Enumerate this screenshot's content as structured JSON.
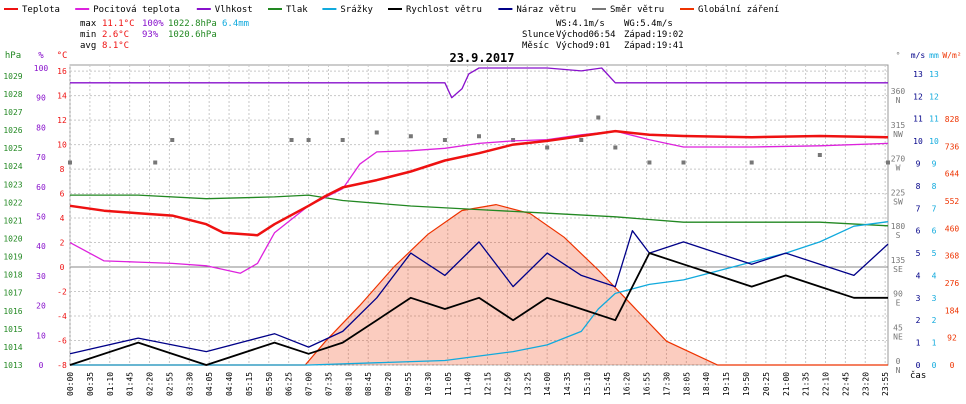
{
  "colors": {
    "temperature": "#ee1111",
    "apparent": "#dd22dd",
    "humidity": "#8811cc",
    "pressure": "#228822",
    "precip": "#11aadd",
    "wind_speed": "#000000",
    "gust": "#000088",
    "direction": "#777777",
    "radiation": "#ee3300",
    "grid": "#c8c8c8",
    "zero_line": "#888888"
  },
  "legend": [
    {
      "label": "Teplota",
      "color": "#ee1111"
    },
    {
      "label": "Pocitová teplota",
      "color": "#dd22dd"
    },
    {
      "label": "Vlhkost",
      "color": "#8811cc"
    },
    {
      "label": "Tlak",
      "color": "#228822"
    },
    {
      "label": "Srážky",
      "color": "#11aadd"
    },
    {
      "label": "Rychlost větru",
      "color": "#000000"
    },
    {
      "label": "Náraz větru",
      "color": "#000088"
    },
    {
      "label": "Směr větru",
      "color": "#777777"
    },
    {
      "label": "Globální záření",
      "color": "#ee3300"
    }
  ],
  "stats": {
    "max_label": "max",
    "max_t": "11.1°C",
    "max_h": "100%",
    "max_p": "1022.8hPa",
    "rain": "6.4mm",
    "min_label": "min",
    "min_t": "2.6°C",
    "min_h": "93%",
    "min_p": "1020.6hPa",
    "avg_label": "avg",
    "avg_t": "8.1°C",
    "ws": "WS:4.1m/s",
    "wg": "WG:5.4m/s",
    "sun_label": "Slunce",
    "sun_rise": "Východ06:54",
    "sun_set": "Západ:19:02",
    "moon_label": "Měsíc",
    "moon_rise": "Východ9:01",
    "moon_set": "Západ:19:41"
  },
  "chart_data": {
    "type": "line",
    "title": "23.9.2017",
    "x_unit": "čas",
    "axes": {
      "hPa": {
        "label": "hPa",
        "ticks": [
          1013,
          1014,
          1015,
          1016,
          1017,
          1018,
          1019,
          1020,
          1021,
          1022,
          1023,
          1024,
          1025,
          1026,
          1027,
          1028,
          1029
        ]
      },
      "pct": {
        "label": "%",
        "ticks": [
          0,
          10,
          20,
          30,
          40,
          50,
          60,
          70,
          80,
          90,
          100
        ]
      },
      "degC": {
        "label": "°C",
        "ticks": [
          -8,
          -6,
          -4,
          -2,
          0,
          2,
          4,
          6,
          8,
          10,
          12,
          14,
          16
        ]
      },
      "dir": {
        "label": "°",
        "ticks": [
          "0",
          "45",
          "90",
          "135",
          "180",
          "225",
          "270",
          "315",
          "360"
        ],
        "names": [
          "N",
          "NE",
          "E",
          "SE",
          "S",
          "SW",
          "W",
          "NW",
          "N"
        ]
      },
      "ms": {
        "label": "m/s",
        "ticks": [
          0,
          1,
          2,
          3,
          4,
          5,
          6,
          7,
          8,
          9,
          10,
          11,
          12,
          13
        ]
      },
      "mm": {
        "label": "mm",
        "ticks": [
          0,
          1,
          2,
          3,
          4,
          5,
          6,
          7,
          8,
          9,
          10,
          11,
          12,
          13
        ]
      },
      "wm2": {
        "label": "W/m²",
        "ticks": [
          0,
          92,
          184,
          276,
          368,
          460,
          552,
          644,
          736,
          828
        ]
      }
    },
    "x_ticks": [
      "00:00",
      "00:35",
      "01:10",
      "01:45",
      "02:20",
      "02:55",
      "03:30",
      "04:05",
      "04:40",
      "05:15",
      "05:50",
      "06:25",
      "07:00",
      "07:35",
      "08:10",
      "08:45",
      "09:20",
      "09:55",
      "10:30",
      "11:05",
      "11:40",
      "12:15",
      "12:50",
      "13:25",
      "14:00",
      "14:35",
      "15:10",
      "15:45",
      "16:20",
      "16:55",
      "17:30",
      "18:05",
      "18:40",
      "19:15",
      "19:50",
      "20:25",
      "21:00",
      "21:35",
      "22:10",
      "22:45",
      "23:20",
      "23:55"
    ],
    "series": [
      {
        "name": "Teplota",
        "unit": "°C",
        "points": [
          [
            0,
            5.0
          ],
          [
            1,
            4.6
          ],
          [
            2,
            4.4
          ],
          [
            3,
            4.2
          ],
          [
            4,
            3.5
          ],
          [
            4.5,
            2.8
          ],
          [
            5.5,
            2.6
          ],
          [
            6,
            3.5
          ],
          [
            7,
            5.0
          ],
          [
            7.5,
            5.8
          ],
          [
            8,
            6.5
          ],
          [
            9,
            7.1
          ],
          [
            10,
            7.8
          ],
          [
            11,
            8.7
          ],
          [
            12,
            9.3
          ],
          [
            13,
            10.0
          ],
          [
            14,
            10.3
          ],
          [
            14.5,
            10.5
          ],
          [
            15,
            10.7
          ],
          [
            16,
            11.1
          ],
          [
            17,
            10.8
          ],
          [
            18,
            10.7
          ],
          [
            20,
            10.6
          ],
          [
            22,
            10.7
          ],
          [
            24,
            10.6
          ]
        ]
      },
      {
        "name": "Pocitová teplota",
        "unit": "°C",
        "points": [
          [
            0,
            2.0
          ],
          [
            1,
            0.5
          ],
          [
            2,
            0.4
          ],
          [
            3,
            0.3
          ],
          [
            4,
            0.1
          ],
          [
            5,
            -0.5
          ],
          [
            5.5,
            0.3
          ],
          [
            6,
            2.8
          ],
          [
            7,
            5.0
          ],
          [
            8,
            6.4
          ],
          [
            8.5,
            8.4
          ],
          [
            9,
            9.4
          ],
          [
            10,
            9.5
          ],
          [
            11,
            9.7
          ],
          [
            12,
            10.1
          ],
          [
            13,
            10.3
          ],
          [
            14,
            10.4
          ],
          [
            15,
            10.8
          ],
          [
            16,
            11.1
          ],
          [
            17,
            10.4
          ],
          [
            18,
            9.8
          ],
          [
            20,
            9.8
          ],
          [
            22,
            9.9
          ],
          [
            24,
            10.1
          ]
        ]
      },
      {
        "name": "Vlhkost",
        "unit": "%",
        "points": [
          [
            0,
            95
          ],
          [
            11,
            95
          ],
          [
            11.2,
            90
          ],
          [
            11.5,
            93
          ],
          [
            11.7,
            98
          ],
          [
            12,
            100
          ],
          [
            14,
            100
          ],
          [
            15,
            99
          ],
          [
            15.6,
            100
          ],
          [
            16,
            95
          ],
          [
            17,
            95
          ],
          [
            18,
            95
          ],
          [
            20,
            95
          ],
          [
            24,
            95
          ]
        ]
      },
      {
        "name": "Tlak",
        "unit": "hPa",
        "points": [
          [
            0,
            1022.4
          ],
          [
            2,
            1022.4
          ],
          [
            4,
            1022.2
          ],
          [
            6,
            1022.3
          ],
          [
            7,
            1022.4
          ],
          [
            8,
            1022.1
          ],
          [
            10,
            1021.8
          ],
          [
            12,
            1021.6
          ],
          [
            14,
            1021.4
          ],
          [
            16,
            1021.2
          ],
          [
            18,
            1020.9
          ],
          [
            20,
            1020.9
          ],
          [
            22,
            1020.9
          ],
          [
            24,
            1020.7
          ]
        ]
      },
      {
        "name": "Srážky",
        "unit": "mm",
        "points": [
          [
            0,
            0
          ],
          [
            7,
            0
          ],
          [
            11,
            0.2
          ],
          [
            13,
            0.6
          ],
          [
            14,
            0.9
          ],
          [
            15,
            1.5
          ],
          [
            15.5,
            2.5
          ],
          [
            16,
            3.2
          ],
          [
            17,
            3.6
          ],
          [
            18,
            3.8
          ],
          [
            19,
            4.2
          ],
          [
            20,
            4.6
          ],
          [
            21,
            5.0
          ],
          [
            22,
            5.5
          ],
          [
            23,
            6.2
          ],
          [
            24,
            6.4
          ]
        ]
      },
      {
        "name": "Rychlost větru",
        "unit": "m/s",
        "points": [
          [
            0,
            0
          ],
          [
            2,
            1
          ],
          [
            4,
            0
          ],
          [
            6,
            1
          ],
          [
            7,
            0.5
          ],
          [
            8,
            1
          ],
          [
            9,
            2
          ],
          [
            10,
            3
          ],
          [
            11,
            2.5
          ],
          [
            12,
            3
          ],
          [
            13,
            2
          ],
          [
            14,
            3
          ],
          [
            15,
            2.5
          ],
          [
            16,
            2
          ],
          [
            16.5,
            3.5
          ],
          [
            17,
            5
          ],
          [
            18,
            4.5
          ],
          [
            19,
            4
          ],
          [
            20,
            3.5
          ],
          [
            21,
            4
          ],
          [
            22,
            3.5
          ],
          [
            23,
            3
          ],
          [
            24,
            3
          ]
        ]
      },
      {
        "name": "Náraz větru",
        "unit": "m/s",
        "points": [
          [
            0,
            0.5
          ],
          [
            2,
            1.2
          ],
          [
            4,
            0.6
          ],
          [
            6,
            1.4
          ],
          [
            7,
            0.8
          ],
          [
            8,
            1.5
          ],
          [
            9,
            3
          ],
          [
            10,
            5
          ],
          [
            11,
            4
          ],
          [
            12,
            5.5
          ],
          [
            13,
            3.5
          ],
          [
            14,
            5
          ],
          [
            15,
            4
          ],
          [
            16,
            3.5
          ],
          [
            16.5,
            6
          ],
          [
            17,
            5
          ],
          [
            18,
            5.5
          ],
          [
            19,
            5
          ],
          [
            20,
            4.5
          ],
          [
            21,
            5
          ],
          [
            22,
            4.5
          ],
          [
            23,
            4
          ],
          [
            24,
            5.4
          ]
        ]
      },
      {
        "name": "Směr větru",
        "unit": "°",
        "points": [
          [
            0,
            270
          ],
          [
            2.5,
            270
          ],
          [
            3,
            300
          ],
          [
            6.5,
            300
          ],
          [
            7,
            300
          ],
          [
            8,
            300
          ],
          [
            9,
            310
          ],
          [
            10,
            305
          ],
          [
            11,
            300
          ],
          [
            12,
            305
          ],
          [
            13,
            300
          ],
          [
            14,
            290
          ],
          [
            15,
            300
          ],
          [
            15.5,
            330
          ],
          [
            16,
            290
          ],
          [
            17,
            270
          ],
          [
            18,
            270
          ],
          [
            20,
            270
          ],
          [
            22,
            280
          ],
          [
            24,
            270
          ]
        ]
      },
      {
        "name": "Globální záření",
        "unit": "W/m²",
        "points": [
          [
            0,
            0
          ],
          [
            6.9,
            0
          ],
          [
            7.5,
            80
          ],
          [
            8.5,
            200
          ],
          [
            9.5,
            330
          ],
          [
            10.5,
            440
          ],
          [
            11.5,
            520
          ],
          [
            12.5,
            540
          ],
          [
            13.5,
            510
          ],
          [
            14.5,
            430
          ],
          [
            15.5,
            320
          ],
          [
            16.5,
            200
          ],
          [
            17.5,
            80
          ],
          [
            19,
            0
          ],
          [
            24,
            0
          ]
        ]
      }
    ]
  }
}
